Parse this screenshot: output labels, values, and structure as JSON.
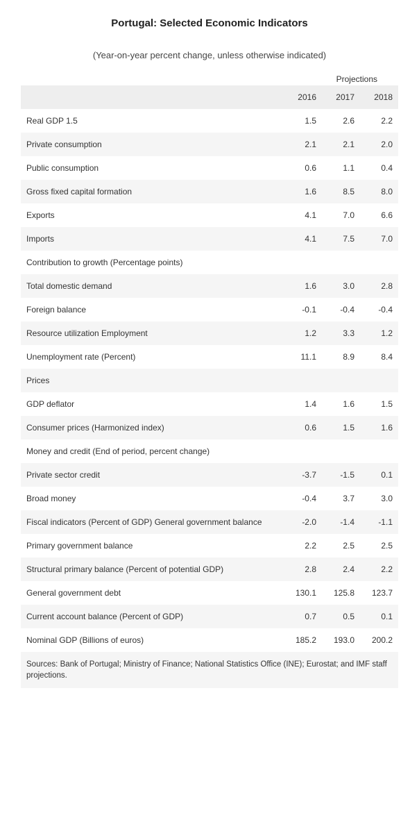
{
  "title": "Portugal: Selected Economic Indicators",
  "subtitle": "(Year-on-year percent change, unless otherwise indicated)",
  "projections_label": "Projections",
  "columns": [
    "2016",
    "2017",
    "2018"
  ],
  "rows": [
    {
      "label": "Real GDP 1.5",
      "values": [
        "1.5",
        "2.6",
        "2.2"
      ],
      "striped": false
    },
    {
      "label": "Private consumption",
      "values": [
        "2.1",
        "2.1",
        "2.0"
      ],
      "striped": true
    },
    {
      "label": "Public consumption",
      "values": [
        "0.6",
        "1.1",
        "0.4"
      ],
      "striped": false
    },
    {
      "label": "Gross fixed capital formation",
      "values": [
        "1.6",
        "8.5",
        "8.0"
      ],
      "striped": true
    },
    {
      "label": "Exports",
      "values": [
        "4.1",
        "7.0",
        "6.6"
      ],
      "striped": false
    },
    {
      "label": "Imports",
      "values": [
        "4.1",
        "7.5",
        "7.0"
      ],
      "striped": true
    },
    {
      "label": "Contribution to growth (Percentage points)",
      "values": [
        "",
        "",
        ""
      ],
      "striped": false
    },
    {
      "label": "Total domestic demand",
      "values": [
        "1.6",
        "3.0",
        "2.8"
      ],
      "striped": true
    },
    {
      "label": "Foreign balance",
      "values": [
        "-0.1",
        "-0.4",
        "-0.4"
      ],
      "striped": false
    },
    {
      "label": "Resource utilization Employment",
      "values": [
        "1.2",
        "3.3",
        "1.2"
      ],
      "striped": true
    },
    {
      "label": "Unemployment rate (Percent)",
      "values": [
        "11.1",
        "8.9",
        "8.4"
      ],
      "striped": false
    },
    {
      "label": "Prices",
      "values": [
        "",
        "",
        ""
      ],
      "striped": true
    },
    {
      "label": "GDP deflator",
      "values": [
        "1.4",
        "1.6",
        "1.5"
      ],
      "striped": false
    },
    {
      "label": "Consumer prices (Harmonized index)",
      "values": [
        "0.6",
        "1.5",
        "1.6"
      ],
      "striped": true
    },
    {
      "label": "Money and credit (End of period, percent change)",
      "values": [
        "",
        "",
        ""
      ],
      "striped": false
    },
    {
      "label": "Private sector credit",
      "values": [
        "-3.7",
        "-1.5",
        "0.1"
      ],
      "striped": true
    },
    {
      "label": "Broad money",
      "values": [
        "-0.4",
        "3.7",
        "3.0"
      ],
      "striped": false
    },
    {
      "label": "Fiscal indicators (Percent of GDP) General government balance",
      "values": [
        "-2.0",
        "-1.4",
        "-1.1"
      ],
      "striped": true
    },
    {
      "label": "Primary government balance",
      "values": [
        "2.2",
        "2.5",
        "2.5"
      ],
      "striped": false
    },
    {
      "label": "Structural primary balance (Percent of potential GDP)",
      "values": [
        "2.8",
        "2.4",
        "2.2"
      ],
      "striped": true
    },
    {
      "label": "General government debt",
      "values": [
        "130.1",
        "125.8",
        "123.7"
      ],
      "striped": false
    },
    {
      "label": "Current account balance (Percent of GDP)",
      "values": [
        "0.7",
        "0.5",
        "0.1"
      ],
      "striped": true
    },
    {
      "label": "Nominal GDP (Billions of euros)",
      "values": [
        "185.2",
        "193.0",
        "200.2"
      ],
      "striped": false
    }
  ],
  "sources": "Sources: Bank of Portugal; Ministry of Finance; National Statistics Office (INE); Eurostat; and IMF staff projections.",
  "colors": {
    "background": "#ffffff",
    "stripe": "#f5f5f5",
    "header_bg": "#eeeeee",
    "text": "#333333"
  },
  "typography": {
    "title_fontsize": 15,
    "subtitle_fontsize": 13,
    "body_fontsize": 12,
    "sources_fontsize": 11.5
  }
}
